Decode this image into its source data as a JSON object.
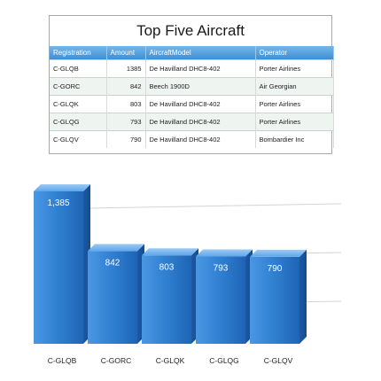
{
  "table": {
    "title": "Top Five Aircraft",
    "columns": [
      "Registration",
      "Amount",
      "AircraftModel",
      "Operator"
    ],
    "rows": [
      [
        "C-GLQB",
        "1385",
        "De Havilland DHC8-402",
        "Porter Airlines"
      ],
      [
        "C-GORC",
        "842",
        "Beech 1900D",
        "Air Georgian"
      ],
      [
        "C-GLQK",
        "803",
        "De Havilland DHC8-402",
        "Porter Airlines"
      ],
      [
        "C-GLQG",
        "793",
        "De Havilland DHC8-402",
        "Porter Airlines"
      ],
      [
        "C-GLQV",
        "790",
        "De Havilland DHC8-402",
        "Bombardier Inc"
      ]
    ]
  },
  "chart_data": {
    "type": "bar",
    "title": "",
    "xlabel": "",
    "ylabel": "",
    "categories": [
      "C-GLQB",
      "C-GORC",
      "C-GLQK",
      "C-GLQG",
      "C-GLQV"
    ],
    "values": [
      1385,
      842,
      803,
      793,
      790
    ],
    "value_labels": [
      "1,385",
      "842",
      "803",
      "793",
      "790"
    ],
    "ylim": [
      0,
      1385
    ],
    "grid": true,
    "legend": "none",
    "bar_color": "#2f7fd1"
  }
}
